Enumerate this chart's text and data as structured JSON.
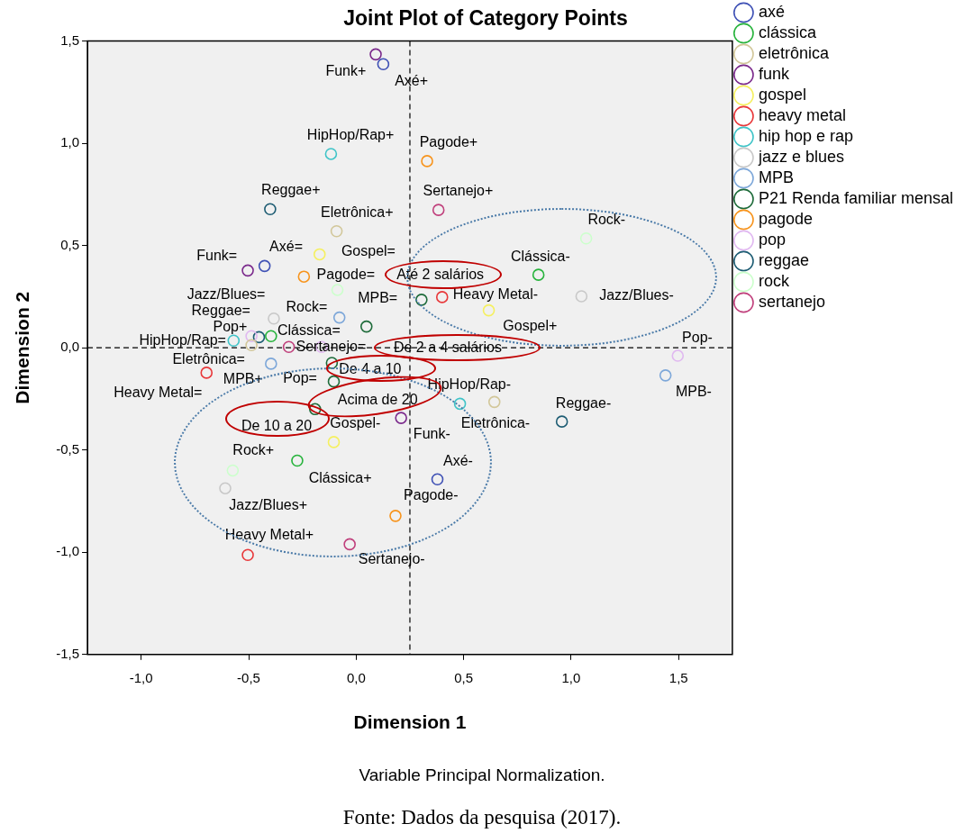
{
  "chart_data": {
    "type": "scatter",
    "title": "Joint Plot of Category Points",
    "xlabel": "Dimension 1",
    "ylabel": "Dimension 2",
    "xlim": [
      -1.25,
      1.75
    ],
    "ylim": [
      -1.5,
      1.5
    ],
    "xticks": [
      {
        "value": -1,
        "label": "-1,0"
      },
      {
        "value": -0.5,
        "label": "-0,5"
      },
      {
        "value": 0,
        "label": "0,0"
      },
      {
        "value": 0.5,
        "label": "0,5"
      },
      {
        "value": 1,
        "label": "1,0"
      },
      {
        "value": 1.5,
        "label": "1,5"
      }
    ],
    "yticks": [
      {
        "value": -1.5,
        "label": "-1,5"
      },
      {
        "value": -1,
        "label": "-1,0"
      },
      {
        "value": -0.5,
        "label": "-0,5"
      },
      {
        "value": 0,
        "label": "0,0"
      },
      {
        "value": 0.5,
        "label": "0,5"
      },
      {
        "value": 1,
        "label": "1,0"
      },
      {
        "value": 1.5,
        "label": "1,5"
      }
    ],
    "grid": false,
    "legend": "right",
    "marker": "circle",
    "ref_lines": [
      {
        "axis": "x",
        "value": 0.25,
        "color": "#000000",
        "line_style": "dashed"
      },
      {
        "axis": "y",
        "value": 0,
        "color": "#000000",
        "line_style": "dashed"
      }
    ],
    "series": [
      {
        "name": "axé",
        "color": "#3f51b5",
        "x": [
          0.126,
          -0.426,
          0.378
        ],
        "values": [
          1.387,
          0.4,
          -0.643
        ]
      },
      {
        "name": "clássica",
        "color": "#27b33c",
        "x": [
          -0.396,
          0.848,
          -0.274
        ],
        "values": [
          0.057,
          0.357,
          -0.552
        ]
      },
      {
        "name": "eletrônica",
        "color": "#d2c79a",
        "x": [
          -0.091,
          -0.487,
          0.643
        ],
        "values": [
          0.57,
          0.013,
          -0.265
        ]
      },
      {
        "name": "funk",
        "color": "#7b2a8c",
        "x": [
          0.091,
          -0.504,
          0.209
        ],
        "values": [
          1.435,
          0.378,
          -0.343
        ]
      },
      {
        "name": "gospel",
        "color": "#f5f060",
        "x": [
          -0.17,
          0.617,
          -0.104
        ],
        "values": [
          0.457,
          0.183,
          -0.461
        ]
      },
      {
        "name": "heavy metal",
        "color": "#e8383a",
        "x": [
          0.4,
          -0.696,
          -0.504
        ],
        "values": [
          0.248,
          -0.122,
          -1.013
        ]
      },
      {
        "name": "hip hop e rap",
        "color": "#40c4c8",
        "x": [
          -0.117,
          -0.57,
          0.483
        ],
        "values": [
          0.948,
          0.035,
          -0.274
        ]
      },
      {
        "name": "jazz e blues",
        "color": "#c8c8c8",
        "x": [
          -0.383,
          1.048,
          -0.609
        ],
        "values": [
          0.143,
          0.252,
          -0.687
        ]
      },
      {
        "name": "MPB",
        "color": "#7da7d9",
        "x": [
          -0.078,
          -0.396,
          1.439
        ],
        "values": [
          0.148,
          -0.078,
          -0.135
        ]
      },
      {
        "name": "P21 Renda familiar mensal",
        "color": "#1e6b3a",
        "x": [
          0.304,
          0.048,
          -0.113,
          -0.104,
          -0.191
        ],
        "values": [
          0.235,
          0.104,
          -0.074,
          -0.165,
          -0.3
        ]
      },
      {
        "name": "pagode",
        "color": "#f7941d",
        "x": [
          0.33,
          -0.243,
          0.183
        ],
        "values": [
          0.913,
          0.348,
          -0.822
        ]
      },
      {
        "name": "pop",
        "color": "#e0b8f0",
        "x": [
          1.496,
          -0.487,
          -0.161
        ],
        "values": [
          -0.039,
          0.057,
          0.004
        ]
      },
      {
        "name": "reggae",
        "color": "#1d5c73",
        "x": [
          -0.4,
          -0.452,
          0.957
        ],
        "values": [
          0.678,
          0.052,
          -0.361
        ]
      },
      {
        "name": "rock",
        "color": "#ccffcc",
        "x": [
          1.07,
          -0.087,
          -0.574
        ],
        "values": [
          0.535,
          0.283,
          -0.6
        ]
      },
      {
        "name": "sertanejo",
        "color": "#c0407c",
        "x": [
          0.383,
          -0.313,
          -0.03
        ],
        "values": [
          0.674,
          0.004,
          -0.961
        ]
      }
    ],
    "annotations": [
      {
        "text": "Funk+",
        "x": 0.091,
        "y": 1.435
      },
      {
        "text": "Axé+",
        "x": 0.126,
        "y": 1.387
      },
      {
        "text": "HipHop/Rap+",
        "x": -0.117,
        "y": 0.948
      },
      {
        "text": "Pagode+",
        "x": 0.33,
        "y": 0.913
      },
      {
        "text": "Reggae+",
        "x": -0.4,
        "y": 0.678
      },
      {
        "text": "Sertanejo+",
        "x": 0.383,
        "y": 0.674
      },
      {
        "text": "Eletrônica+",
        "x": -0.091,
        "y": 0.57
      },
      {
        "text": "Rock-",
        "x": 1.07,
        "y": 0.535
      },
      {
        "text": "Axé=",
        "x": -0.426,
        "y": 0.4
      },
      {
        "text": "Funk=",
        "x": -0.504,
        "y": 0.378
      },
      {
        "text": "Gospel=",
        "x": -0.17,
        "y": 0.457
      },
      {
        "text": "Clássica-",
        "x": 0.848,
        "y": 0.357
      },
      {
        "text": "Pagode=",
        "x": -0.243,
        "y": 0.348
      },
      {
        "text": "Até 2 salários",
        "x": 0.304,
        "y": 0.235
      },
      {
        "text": "Heavy Metal-",
        "x": 0.4,
        "y": 0.248
      },
      {
        "text": "Jazz/Blues-",
        "x": 1.048,
        "y": 0.252
      },
      {
        "text": "MPB=",
        "x": -0.078,
        "y": 0.148
      },
      {
        "text": "Jazz/Blues=",
        "x": -0.383,
        "y": 0.143
      },
      {
        "text": "Rock=",
        "x": -0.087,
        "y": 0.283
      },
      {
        "text": "Reggae=",
        "x": -0.452,
        "y": 0.052
      },
      {
        "text": "Clássica=",
        "x": -0.396,
        "y": 0.057
      },
      {
        "text": "Gospel+",
        "x": 0.617,
        "y": 0.183
      },
      {
        "text": "HipHop/Rap=",
        "x": -0.57,
        "y": 0.035
      },
      {
        "text": "Sertanejo=",
        "x": -0.313,
        "y": 0.004
      },
      {
        "text": "De 2 a 4 salários",
        "x": 0.048,
        "y": 0.104
      },
      {
        "text": "Pop-",
        "x": 1.496,
        "y": -0.039
      },
      {
        "text": "Eletrônica=",
        "x": -0.487,
        "y": 0.013
      },
      {
        "text": "Pop+",
        "x": -0.487,
        "y": 0.057
      },
      {
        "text": "De 4 a 10",
        "x": -0.113,
        "y": -0.074
      },
      {
        "text": "MPB+",
        "x": -0.396,
        "y": -0.078
      },
      {
        "text": "Pop=",
        "x": -0.161,
        "y": 0.004
      },
      {
        "text": "Heavy Metal=",
        "x": -0.696,
        "y": -0.122
      },
      {
        "text": "HipHop/Rap-",
        "x": 0.483,
        "y": -0.274
      },
      {
        "text": "Acima de 20",
        "x": -0.104,
        "y": -0.165
      },
      {
        "text": "MPB-",
        "x": 1.439,
        "y": -0.135
      },
      {
        "text": "Reggae-",
        "x": 0.957,
        "y": -0.361
      },
      {
        "text": "De 10 a 20",
        "x": -0.191,
        "y": -0.3
      },
      {
        "text": "Gospel-",
        "x": -0.104,
        "y": -0.461
      },
      {
        "text": "Eletrônica-",
        "x": 0.643,
        "y": -0.265
      },
      {
        "text": "Funk-",
        "x": 0.209,
        "y": -0.343
      },
      {
        "text": "Axé-",
        "x": 0.378,
        "y": -0.643
      },
      {
        "text": "Rock+",
        "x": -0.574,
        "y": -0.6
      },
      {
        "text": "Clássica+",
        "x": -0.274,
        "y": -0.552
      },
      {
        "text": "Jazz/Blues+",
        "x": -0.609,
        "y": -0.687
      },
      {
        "text": "Pagode-",
        "x": 0.183,
        "y": -0.822
      },
      {
        "text": "Heavy Metal+",
        "x": -0.504,
        "y": -1.013
      },
      {
        "text": "Sertanejo-",
        "x": -0.03,
        "y": -0.961
      },
      "Variable Principal Normalization.",
      "Fonte: Dados da pesquisa (2017)."
    ]
  }
}
